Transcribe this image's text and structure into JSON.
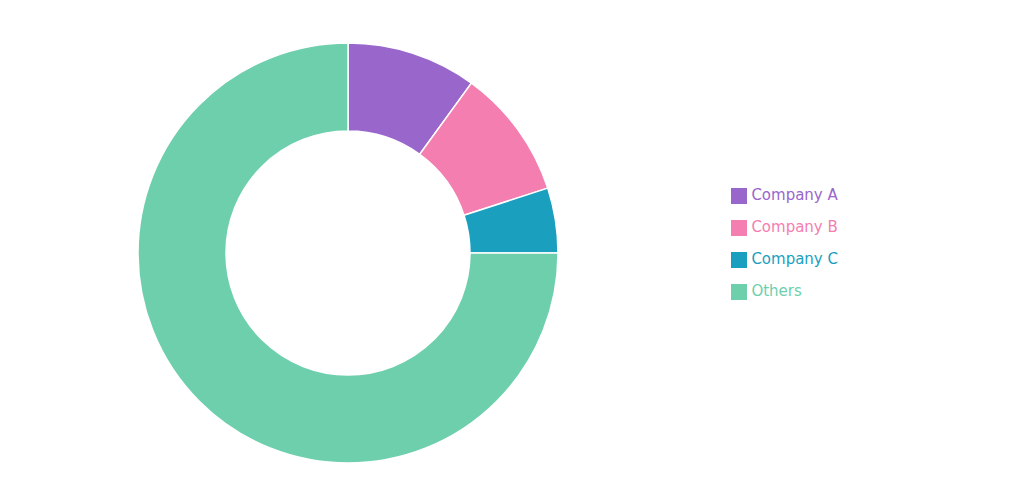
{
  "chart_data": {
    "type": "donut",
    "categories": [
      "Company A",
      "Company B",
      "Company C",
      "Others"
    ],
    "values": [
      10,
      10,
      5,
      75
    ],
    "colors": [
      "#9966cc",
      "#f47eb0",
      "#1a9fbf",
      "#6ecfad"
    ],
    "legend": "right"
  }
}
